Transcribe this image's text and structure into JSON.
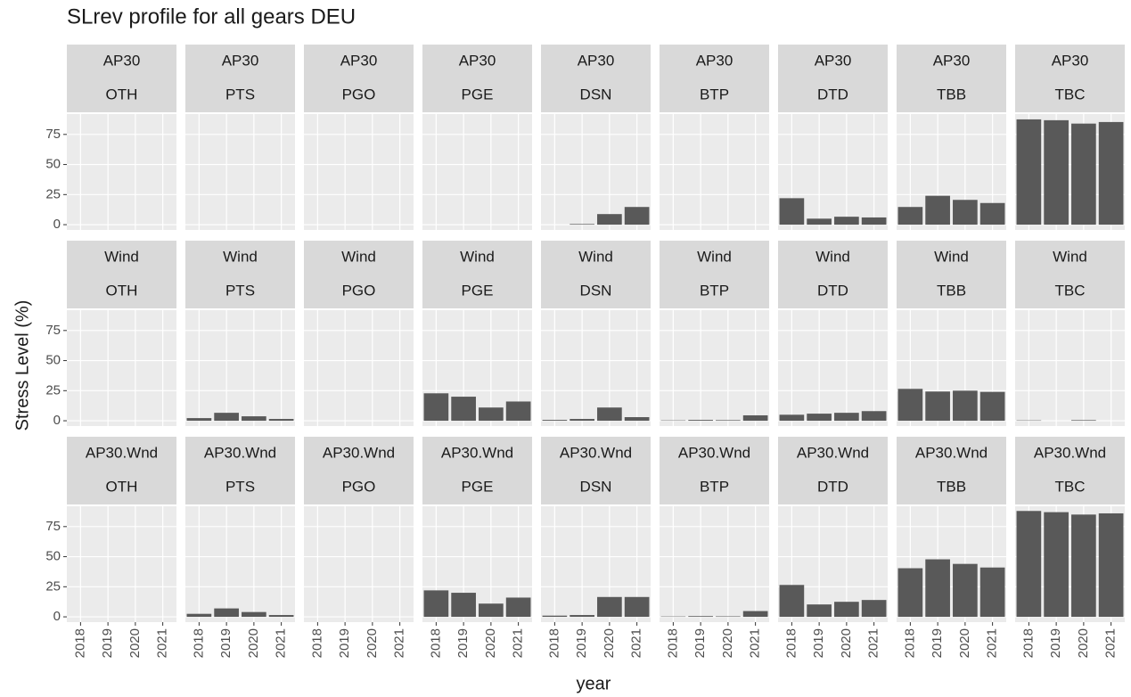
{
  "chart_data": {
    "type": "bar",
    "title": "SLrev profile for all gears  DEU",
    "x_label": "year",
    "y_label": "Stress Level (%)",
    "categories": [
      "2018",
      "2019",
      "2020",
      "2021"
    ],
    "color": "#595959",
    "grid": true,
    "ylim": [
      -4.4,
      91.9
    ],
    "yticks": [
      0,
      25,
      50,
      75
    ],
    "facets": [
      {
        "strip": [
          "AP30",
          "OTH"
        ],
        "values": [
          null,
          null,
          null,
          null
        ]
      },
      {
        "strip": [
          "AP30",
          "PTS"
        ],
        "values": [
          null,
          null,
          null,
          null
        ]
      },
      {
        "strip": [
          "AP30",
          "PGO"
        ],
        "values": [
          null,
          null,
          null,
          null
        ]
      },
      {
        "strip": [
          "AP30",
          "PGE"
        ],
        "values": [
          null,
          null,
          null,
          null
        ]
      },
      {
        "strip": [
          "AP30",
          "DSN"
        ],
        "values": [
          null,
          0.5,
          8.8,
          14.7
        ]
      },
      {
        "strip": [
          "AP30",
          "BTP"
        ],
        "values": [
          null,
          null,
          null,
          null
        ]
      },
      {
        "strip": [
          "AP30",
          "DTD"
        ],
        "values": [
          22,
          5,
          6.6,
          6
        ]
      },
      {
        "strip": [
          "AP30",
          "TBB"
        ],
        "values": [
          14.7,
          24,
          20.6,
          18
        ]
      },
      {
        "strip": [
          "AP30",
          "TBC"
        ],
        "values": [
          87.5,
          86.8,
          84,
          85.3
        ]
      },
      {
        "strip": [
          "Wind",
          "OTH"
        ],
        "values": [
          null,
          null,
          null,
          null
        ]
      },
      {
        "strip": [
          "Wind",
          "PTS"
        ],
        "values": [
          2.2,
          6.6,
          3.7,
          1.5
        ]
      },
      {
        "strip": [
          "Wind",
          "PGO"
        ],
        "values": [
          null,
          null,
          null,
          null
        ]
      },
      {
        "strip": [
          "Wind",
          "PGE"
        ],
        "values": [
          22.8,
          20,
          11,
          16
        ]
      },
      {
        "strip": [
          "Wind",
          "DSN"
        ],
        "values": [
          0.7,
          1.5,
          11,
          3
        ]
      },
      {
        "strip": [
          "Wind",
          "BTP"
        ],
        "values": [
          0.3,
          0.7,
          0.5,
          4.5
        ]
      },
      {
        "strip": [
          "Wind",
          "DTD"
        ],
        "values": [
          5,
          5.9,
          6.6,
          8
        ]
      },
      {
        "strip": [
          "Wind",
          "TBB"
        ],
        "values": [
          26.5,
          24.3,
          25,
          24
        ]
      },
      {
        "strip": [
          "Wind",
          "TBC"
        ],
        "values": [
          0.3,
          null,
          0.5,
          null
        ]
      },
      {
        "strip": [
          "AP30.Wnd",
          "OTH"
        ],
        "values": [
          null,
          null,
          null,
          null
        ]
      },
      {
        "strip": [
          "AP30.Wnd",
          "PTS"
        ],
        "values": [
          2.5,
          7,
          4,
          1.5
        ]
      },
      {
        "strip": [
          "AP30.Wnd",
          "PGO"
        ],
        "values": [
          null,
          null,
          null,
          null
        ]
      },
      {
        "strip": [
          "AP30.Wnd",
          "PGE"
        ],
        "values": [
          22,
          20,
          11,
          16
        ]
      },
      {
        "strip": [
          "AP30.Wnd",
          "DSN"
        ],
        "values": [
          1,
          1.5,
          16.5,
          16.5
        ]
      },
      {
        "strip": [
          "AP30.Wnd",
          "BTP"
        ],
        "values": [
          0.3,
          0.6,
          0.4,
          4.8
        ]
      },
      {
        "strip": [
          "AP30.Wnd",
          "DTD"
        ],
        "values": [
          26.5,
          10.3,
          12.5,
          14
        ]
      },
      {
        "strip": [
          "AP30.Wnd",
          "TBB"
        ],
        "values": [
          40.4,
          47.8,
          44,
          41
        ]
      },
      {
        "strip": [
          "AP30.Wnd",
          "TBC"
        ],
        "values": [
          88,
          87,
          85,
          86
        ]
      }
    ]
  }
}
